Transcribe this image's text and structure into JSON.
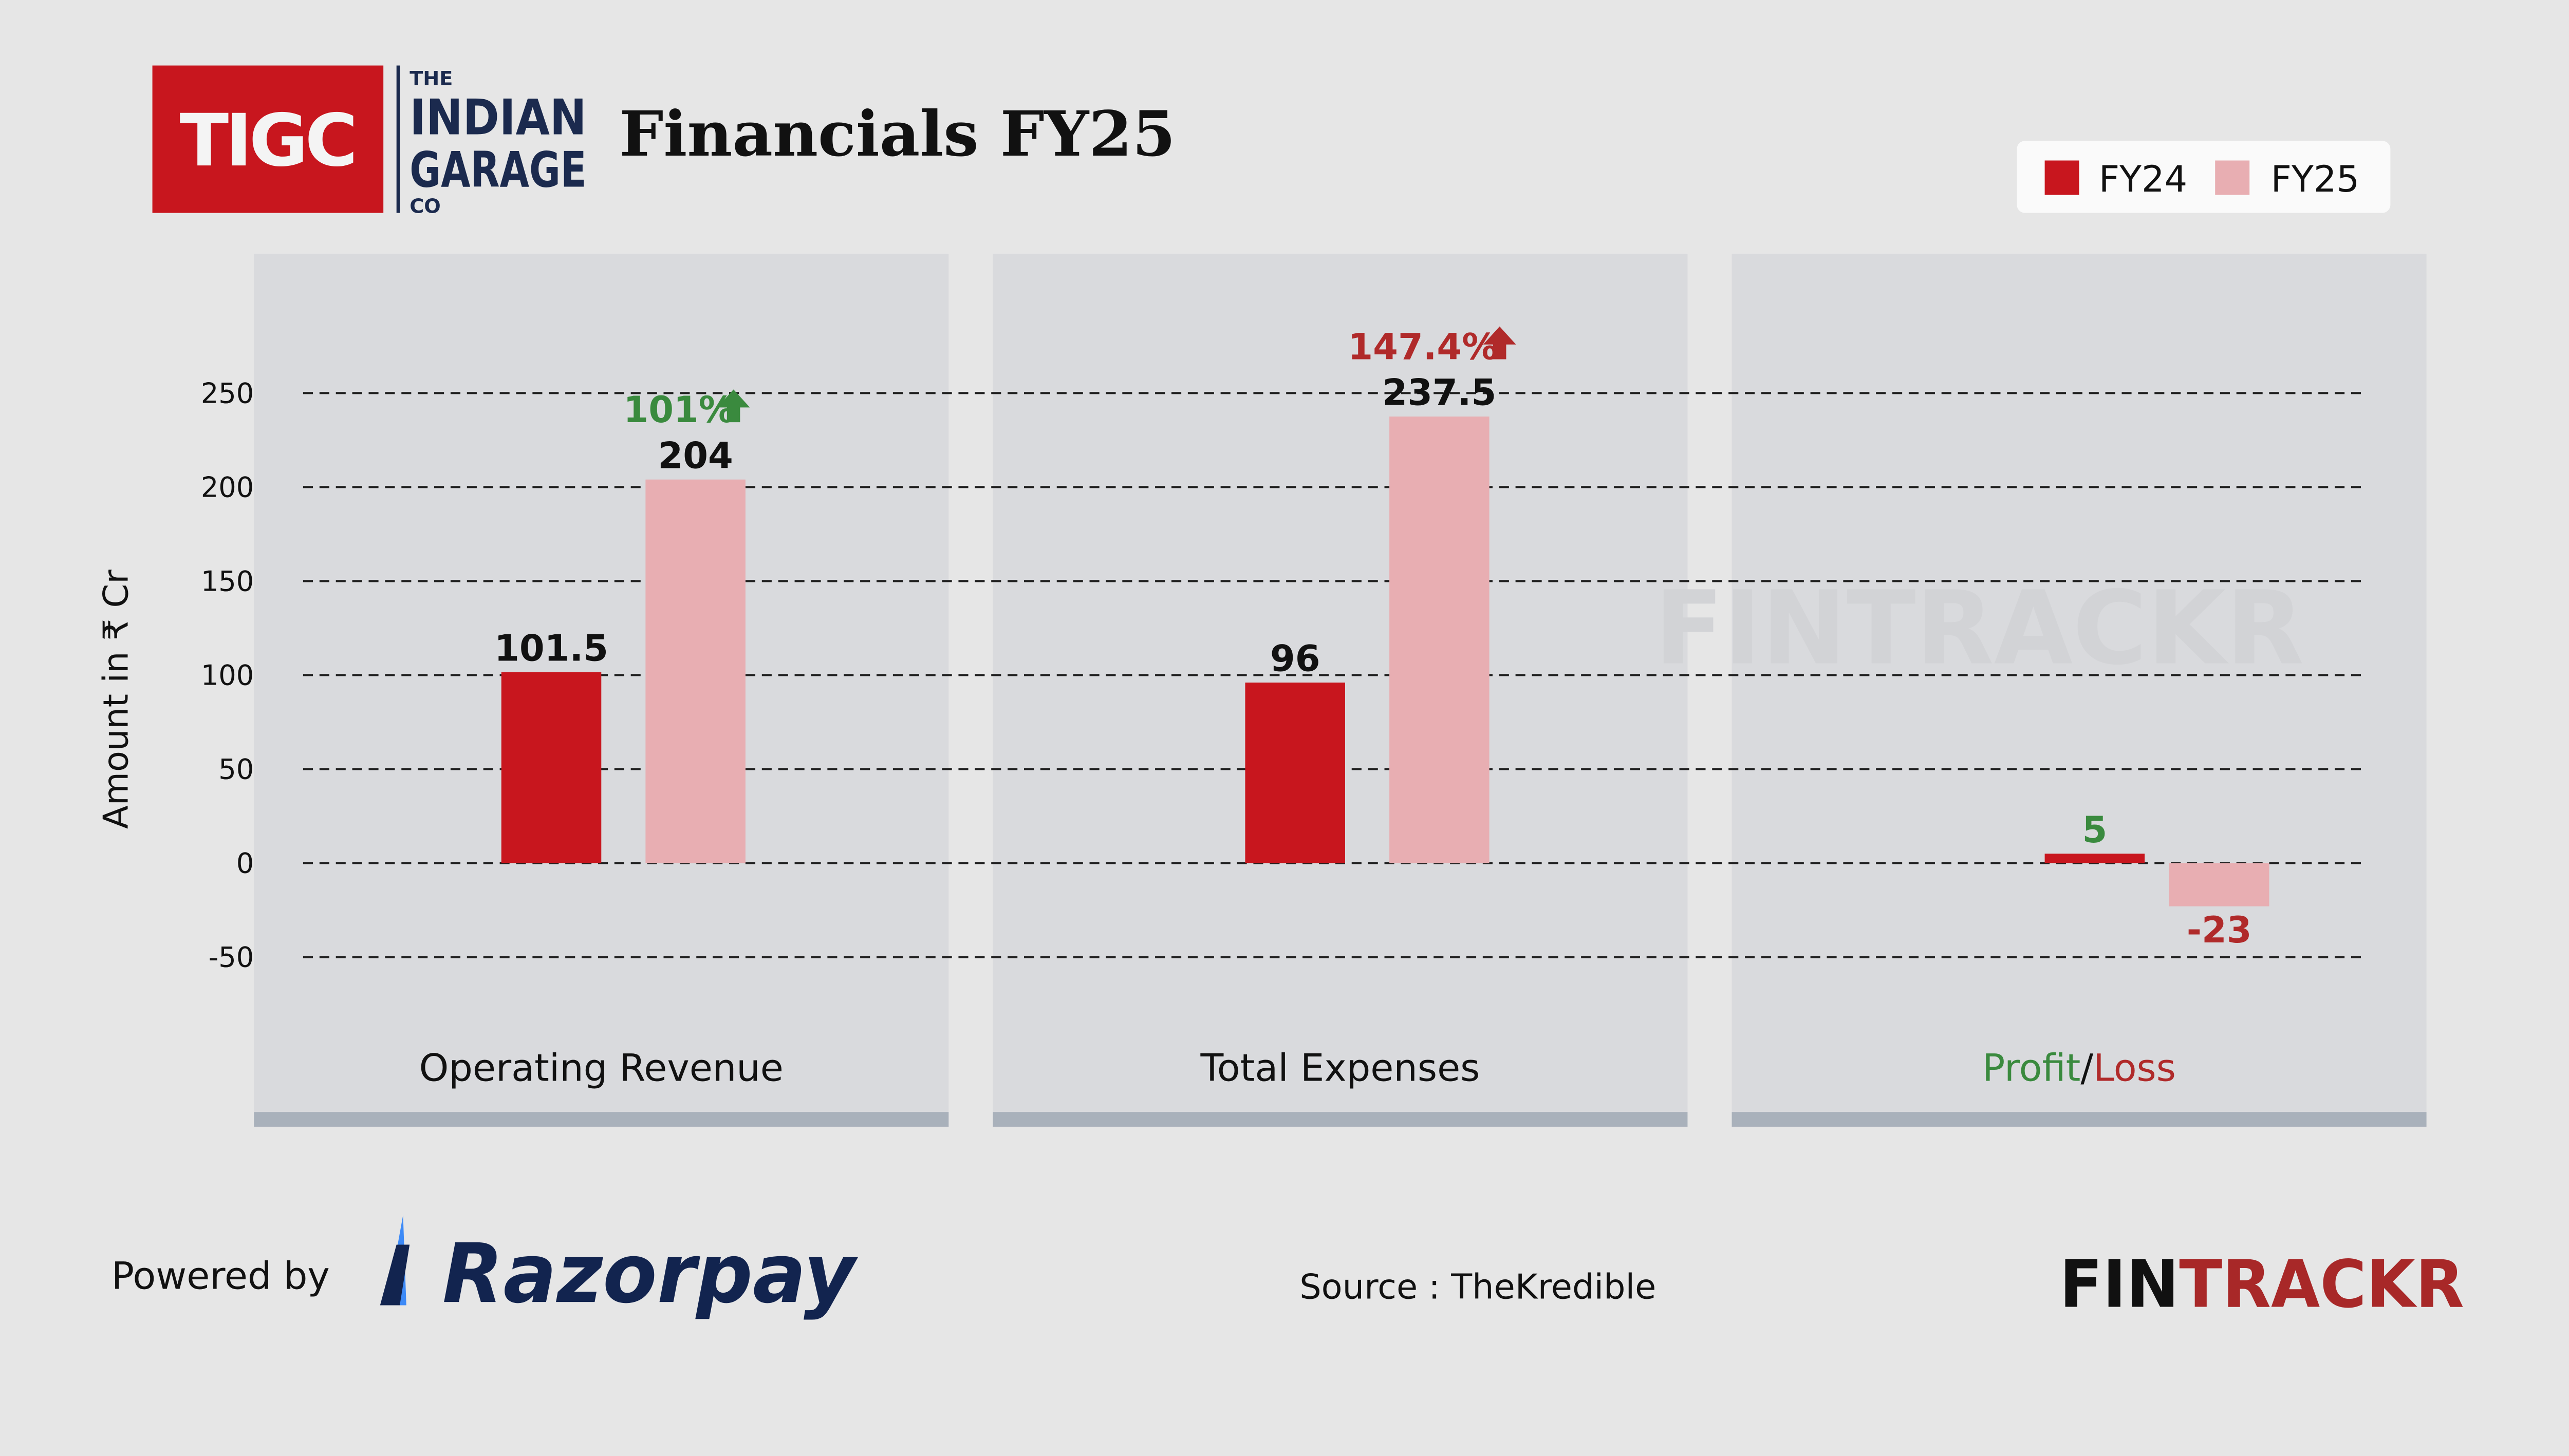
{
  "header": {
    "logo_box_text": "TIGC",
    "logo_lines": [
      "THE",
      "INDIAN",
      "GARAGE",
      "CO"
    ],
    "title": "Financials FY25"
  },
  "footer": {
    "powered_by": "Powered by",
    "razorpay": "Razorpay",
    "source": "Source : TheKredible",
    "brand_black": "FIN",
    "brand_red": "TRACKR"
  },
  "watermark": "FINTRACKR",
  "colors": {
    "fy24": "#c8161e",
    "fy25": "#e8aeb2",
    "up_green": "#3a8a3e",
    "red_text": "#b02a2a",
    "panel": "#d9dadd",
    "panel_base": "#a9b1bb"
  },
  "chart_data": {
    "type": "bar",
    "ylabel": "Amount in ₹ Cr",
    "ylim": [
      -50,
      250
    ],
    "yticks": [
      250,
      200,
      150,
      100,
      50,
      0,
      -50
    ],
    "grid": true,
    "legend_position": "top-right",
    "legend": [
      "FY24",
      "FY25"
    ],
    "categories": [
      "Operating Revenue",
      "Total Expenses",
      "Profit/Loss"
    ],
    "category_label_parts": {
      "profit": "Profit",
      "sep": "/",
      "loss": "Loss"
    },
    "series": [
      {
        "name": "FY24",
        "values": [
          101.5,
          96,
          5
        ],
        "labels": [
          "101.5",
          "96",
          "5"
        ]
      },
      {
        "name": "FY25",
        "values": [
          204,
          237.5,
          -23
        ],
        "labels": [
          "204",
          "237.5",
          "-23"
        ]
      }
    ],
    "annotations": [
      {
        "category": "Operating Revenue",
        "text": "101%",
        "direction": "up",
        "color": "green"
      },
      {
        "category": "Total Expenses",
        "text": "147.4%",
        "direction": "up",
        "color": "red"
      }
    ]
  }
}
